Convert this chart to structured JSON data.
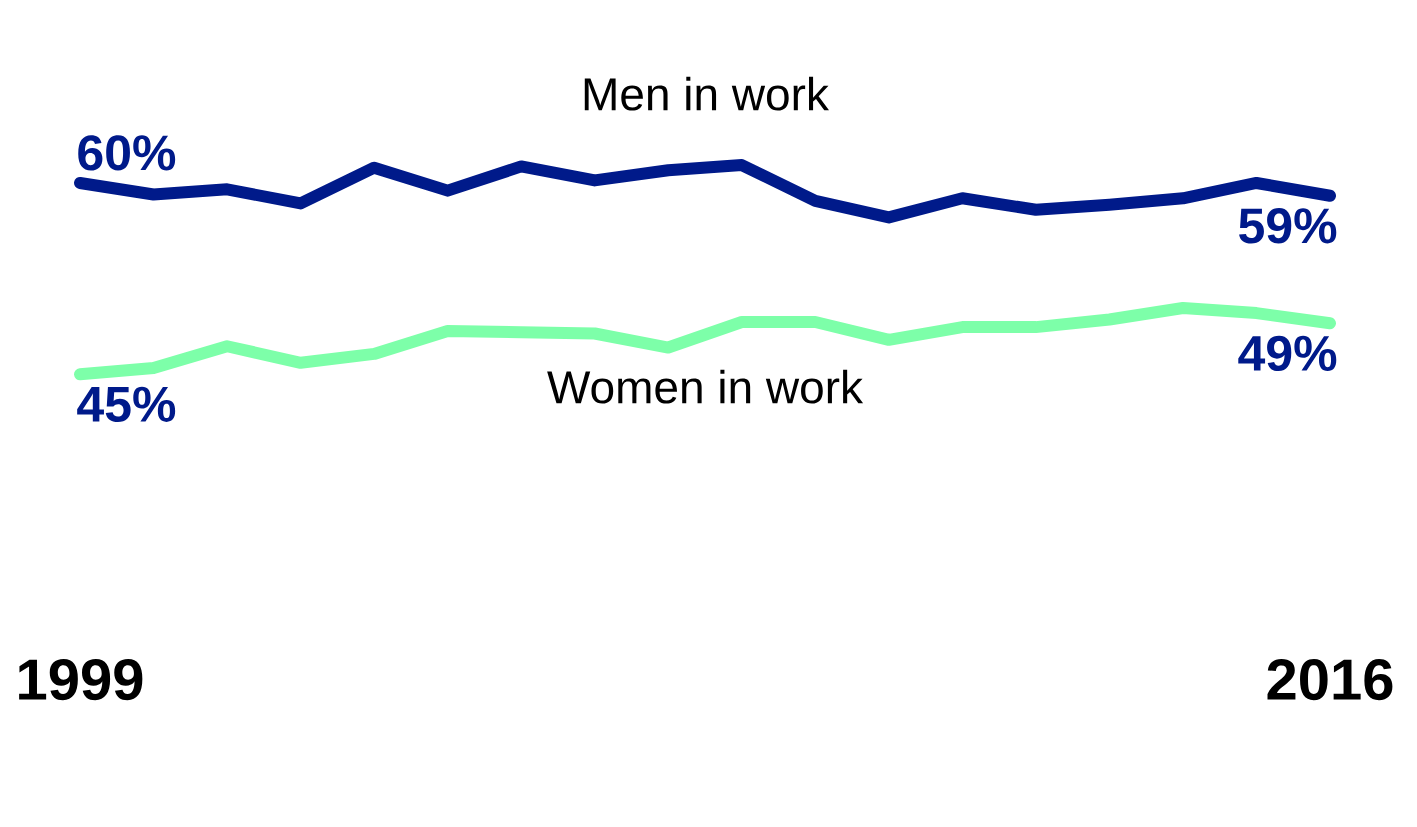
{
  "chart_data": {
    "type": "line",
    "x": [
      1999,
      2000,
      2001,
      2002,
      2003,
      2004,
      2005,
      2006,
      2007,
      2008,
      2009,
      2010,
      2011,
      2012,
      2013,
      2014,
      2015,
      2016
    ],
    "xlim": [
      1999,
      2016
    ],
    "xticks": [
      1999,
      2016
    ],
    "tick_labels": "x",
    "series": [
      {
        "name": "Men in work",
        "color": "#001a8a",
        "values": [
          60,
          59.1,
          59.5,
          58.4,
          61.2,
          59.4,
          61.3,
          60.2,
          61.0,
          61.4,
          58.6,
          57.3,
          58.8,
          57.9,
          58.3,
          58.8,
          60.0,
          59
        ],
        "value_labels": [
          "60%",
          null,
          null,
          null,
          null,
          null,
          null,
          null,
          null,
          null,
          null,
          null,
          null,
          null,
          null,
          null,
          null,
          "59%"
        ]
      },
      {
        "name": "Women in work",
        "color": "#7dffa9",
        "values": [
          45,
          45.5,
          47.2,
          45.9,
          46.6,
          48.4,
          48.3,
          48.2,
          47.1,
          49.1,
          49.1,
          47.7,
          48.7,
          48.7,
          49.3,
          50.2,
          49.8,
          49
        ],
        "value_labels": [
          "45%",
          null,
          null,
          null,
          null,
          null,
          null,
          null,
          null,
          null,
          null,
          null,
          null,
          null,
          null,
          null,
          null,
          "49%"
        ]
      }
    ]
  }
}
